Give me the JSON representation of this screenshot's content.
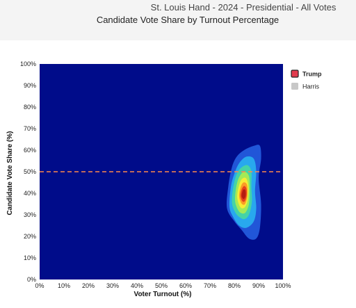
{
  "header": {
    "title": "St. Louis Hand - 2024 - Presidential - All Votes",
    "subtitle": "Candidate Vote Share by Turnout Percentage"
  },
  "colors": {
    "plot_background": "#000c8a",
    "reference_line": "#ff8a4a",
    "trump_swatch": "#e23b4e",
    "harris_swatch": "#c8c8c8",
    "density_ramp": [
      "#2156d8",
      "#28a8ee",
      "#45d3a6",
      "#a3ea57",
      "#f8ec34",
      "#fb9b26",
      "#e4421b",
      "#b51d10"
    ]
  },
  "chart_data": {
    "type": "heatmap",
    "title": "Candidate Vote Share by Turnout Percentage",
    "xlabel": "Voter Turnout (%)",
    "ylabel": "Candidate Vote Share (%)",
    "xlim": [
      0,
      100
    ],
    "ylim": [
      0,
      100
    ],
    "x_ticks": [
      "0%",
      "10%",
      "20%",
      "30%",
      "40%",
      "50%",
      "60%",
      "70%",
      "80%",
      "90%",
      "100%"
    ],
    "y_ticks": [
      "0%",
      "10%",
      "20%",
      "30%",
      "40%",
      "50%",
      "60%",
      "70%",
      "80%",
      "90%",
      "100%"
    ],
    "grid": false,
    "legend_position": "right",
    "reference_line": {
      "orientation": "horizontal",
      "y": 50,
      "style": "dashed"
    },
    "series": [
      {
        "name": "Trump",
        "visible": true,
        "color": "#e23b4e",
        "density_peak": {
          "turnout": 84,
          "vote_share": 39
        }
      },
      {
        "name": "Harris",
        "visible": false,
        "color": "#c8c8c8"
      }
    ],
    "density_contours": [
      {
        "level": 1,
        "color": "#2156d8",
        "polygon": [
          [
            77,
            33
          ],
          [
            77.5,
            43
          ],
          [
            79,
            52
          ],
          [
            81,
            57
          ],
          [
            84,
            60
          ],
          [
            88,
            62
          ],
          [
            90.5,
            62
          ],
          [
            91,
            56
          ],
          [
            90,
            47
          ],
          [
            91,
            35
          ],
          [
            90.5,
            24
          ],
          [
            89,
            19
          ],
          [
            86,
            19
          ],
          [
            83,
            23
          ],
          [
            80,
            27
          ]
        ]
      },
      {
        "level": 2,
        "color": "#28a8ee",
        "polygon": [
          [
            78,
            34
          ],
          [
            78.6,
            43
          ],
          [
            80,
            49
          ],
          [
            82,
            54
          ],
          [
            85,
            57
          ],
          [
            88,
            56
          ],
          [
            89,
            50
          ],
          [
            88.5,
            41
          ],
          [
            89,
            33
          ],
          [
            88,
            27
          ],
          [
            85,
            24
          ],
          [
            82,
            25
          ],
          [
            79.5,
            29
          ]
        ]
      },
      {
        "level": 3,
        "color": "#45d3a6",
        "polygon": [
          [
            79,
            36
          ],
          [
            79.6,
            43
          ],
          [
            81,
            49
          ],
          [
            83,
            52
          ],
          [
            85.5,
            53
          ],
          [
            87,
            50
          ],
          [
            87,
            43
          ],
          [
            87.2,
            36
          ],
          [
            86,
            30
          ],
          [
            84,
            28
          ],
          [
            81.5,
            29.5
          ],
          [
            80,
            32
          ]
        ]
      },
      {
        "level": 4,
        "color": "#a3ea57",
        "polygon": [
          [
            80.3,
            37
          ],
          [
            80.8,
            43
          ],
          [
            82,
            47.5
          ],
          [
            84,
            50
          ],
          [
            86,
            48
          ],
          [
            86.3,
            42
          ],
          [
            86,
            35
          ],
          [
            84.5,
            31
          ],
          [
            82.5,
            31
          ],
          [
            81,
            33.5
          ]
        ]
      },
      {
        "level": 5,
        "color": "#f8ec34",
        "polygon": [
          [
            81.2,
            38
          ],
          [
            81.8,
            43
          ],
          [
            83,
            46.5
          ],
          [
            84.8,
            47
          ],
          [
            85.8,
            43
          ],
          [
            85.5,
            37
          ],
          [
            84.3,
            33.5
          ],
          [
            82.5,
            33.5
          ]
        ]
      },
      {
        "level": 6,
        "color": "#fb9b26",
        "polygon": [
          [
            82,
            38.5
          ],
          [
            82.5,
            42.5
          ],
          [
            83.7,
            45
          ],
          [
            85.2,
            44
          ],
          [
            85.4,
            39
          ],
          [
            84.4,
            35
          ],
          [
            83,
            35.2
          ]
        ]
      },
      {
        "level": 7,
        "color": "#e4421b",
        "polygon": [
          [
            82.5,
            39
          ],
          [
            83.1,
            42
          ],
          [
            84.1,
            43.4
          ],
          [
            85,
            42
          ],
          [
            85,
            38.5
          ],
          [
            84.2,
            36.2
          ],
          [
            83.2,
            36.5
          ]
        ]
      },
      {
        "level": 8,
        "color": "#b51d10",
        "polygon": [
          [
            83,
            39.2
          ],
          [
            83.6,
            41.6
          ],
          [
            84.5,
            41.5
          ],
          [
            84.7,
            39
          ],
          [
            84,
            37.4
          ],
          [
            83.3,
            37.8
          ]
        ]
      }
    ]
  }
}
